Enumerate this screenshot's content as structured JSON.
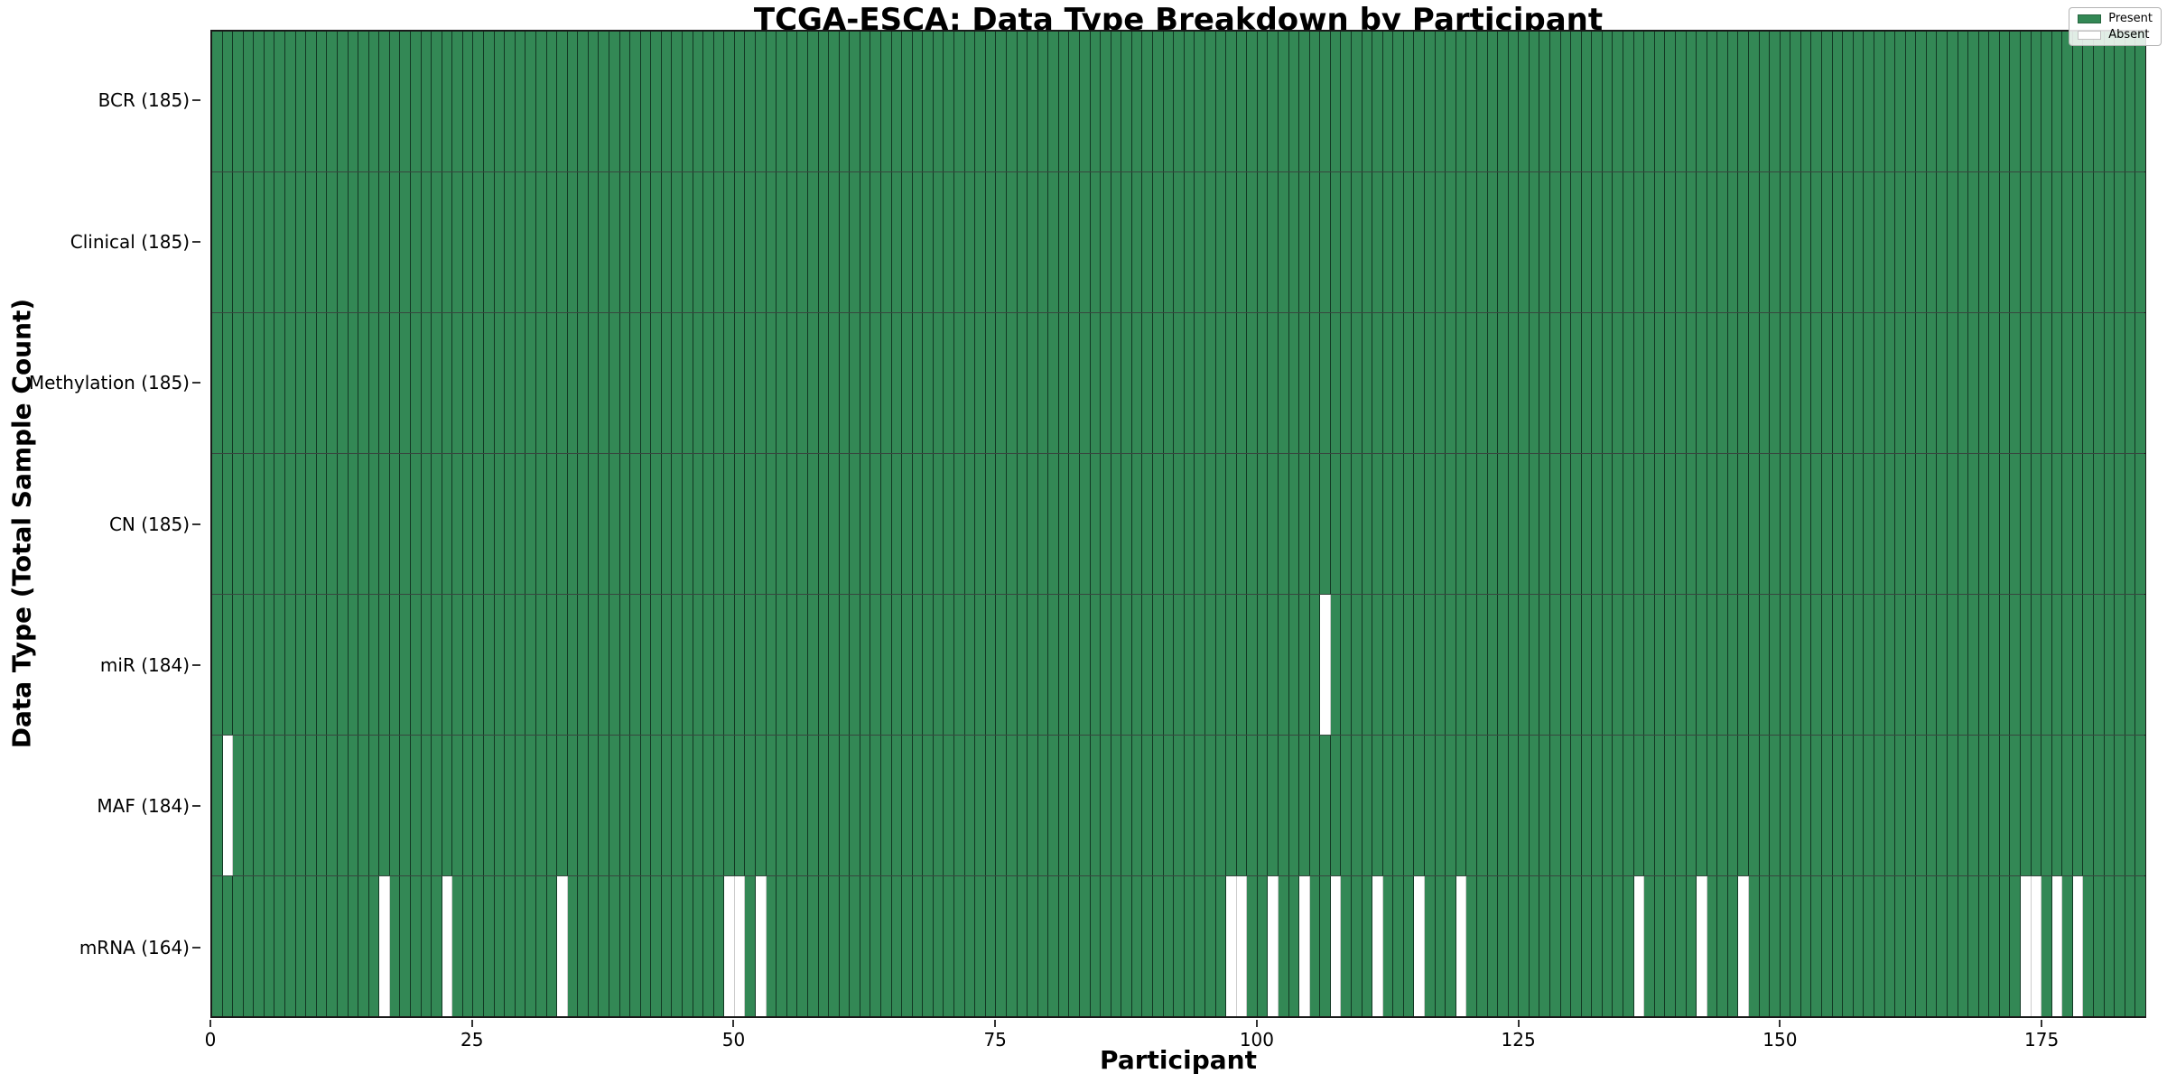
{
  "chart_data": {
    "type": "heatmap",
    "title": "TCGA-ESCA: Data Type Breakdown by Participant",
    "xlabel": "Participant",
    "ylabel": "Data Type (Total Sample Count)",
    "n_participants": 185,
    "x_ticks": [
      0,
      25,
      50,
      75,
      100,
      125,
      150,
      175
    ],
    "x_range": [
      0,
      185
    ],
    "grid": false,
    "legend_position": "upper right",
    "legend": [
      {
        "label": "Present",
        "color": "#338855"
      },
      {
        "label": "Absent",
        "color": "#ffffff"
      }
    ],
    "colors": {
      "present": "#338855",
      "absent": "#ffffff",
      "cell_edge": "#1f3d2b"
    },
    "rows": [
      {
        "label": "BCR (185)",
        "data_type": "BCR",
        "total_sample_count": 185,
        "absent_participants": []
      },
      {
        "label": "Clinical (185)",
        "data_type": "Clinical",
        "total_sample_count": 185,
        "absent_participants": []
      },
      {
        "label": "Methylation (185)",
        "data_type": "Methylation",
        "total_sample_count": 185,
        "absent_participants": []
      },
      {
        "label": "CN (185)",
        "data_type": "CN",
        "total_sample_count": 185,
        "absent_participants": []
      },
      {
        "label": "miR (184)",
        "data_type": "miR",
        "total_sample_count": 184,
        "absent_participants": [
          106
        ]
      },
      {
        "label": "MAF (184)",
        "data_type": "MAF",
        "total_sample_count": 184,
        "absent_participants": [
          1
        ]
      },
      {
        "label": "mRNA (164)",
        "data_type": "mRNA",
        "total_sample_count": 164,
        "absent_participants": [
          16,
          22,
          33,
          49,
          50,
          52,
          97,
          98,
          101,
          104,
          107,
          111,
          115,
          119,
          136,
          142,
          146,
          173,
          174,
          176,
          178
        ]
      }
    ]
  }
}
